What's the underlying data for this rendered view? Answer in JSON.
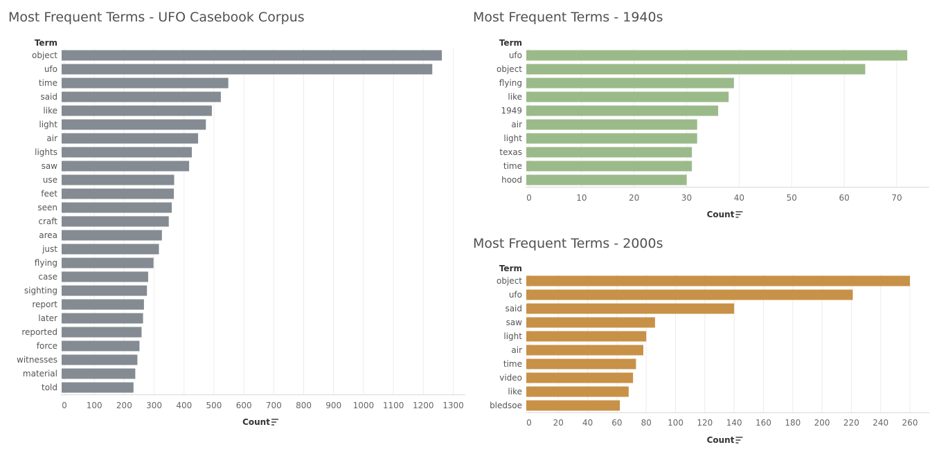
{
  "chart_data": [
    {
      "type": "bar",
      "orientation": "horizontal",
      "title": "Most Frequent Terms - UFO Casebook Corpus",
      "row_header": "Term",
      "xlabel": "Count",
      "categories": [
        "object",
        "ufo",
        "time",
        "said",
        "like",
        "light",
        "air",
        "lights",
        "saw",
        "use",
        "feet",
        "seen",
        "craft",
        "area",
        "just",
        "flying",
        "case",
        "sighting",
        "report",
        "later",
        "reported",
        "force",
        "witnesses",
        "material",
        "told"
      ],
      "values": [
        1262,
        1230,
        548,
        523,
        493,
        473,
        447,
        426,
        417,
        367,
        366,
        359,
        349,
        326,
        316,
        298,
        280,
        276,
        266,
        263,
        258,
        251,
        244,
        237,
        231
      ],
      "xlim": [
        0,
        1320
      ],
      "xticks": [
        0,
        100,
        200,
        300,
        400,
        500,
        600,
        700,
        800,
        900,
        1000,
        1100,
        1200,
        1300
      ],
      "color": "#848b92",
      "grid": true
    },
    {
      "type": "bar",
      "orientation": "horizontal",
      "title": "Most Frequent Terms - 1940s",
      "row_header": "Term",
      "xlabel": "Count",
      "categories": [
        "ufo",
        "object",
        "flying",
        "like",
        "1949",
        "air",
        "light",
        "texas",
        "time",
        "hood"
      ],
      "values": [
        72,
        64,
        39,
        38,
        36,
        32,
        32,
        31,
        31,
        30
      ],
      "xlim": [
        0,
        75
      ],
      "xticks": [
        0,
        10,
        20,
        30,
        40,
        50,
        60,
        70
      ],
      "color": "#9bba8a",
      "grid": true
    },
    {
      "type": "bar",
      "orientation": "horizontal",
      "title": "Most Frequent Terms - 2000s",
      "row_header": "Term",
      "xlabel": "Count",
      "categories": [
        "object",
        "ufo",
        "said",
        "saw",
        "light",
        "air",
        "time",
        "video",
        "like",
        "bledsoe"
      ],
      "values": [
        260,
        221,
        140,
        86,
        80,
        78,
        73,
        71,
        68,
        62
      ],
      "xlim": [
        0,
        268
      ],
      "xticks": [
        0,
        20,
        40,
        60,
        80,
        100,
        120,
        140,
        160,
        180,
        200,
        220,
        240,
        260
      ],
      "color": "#c89148",
      "grid": true
    }
  ]
}
